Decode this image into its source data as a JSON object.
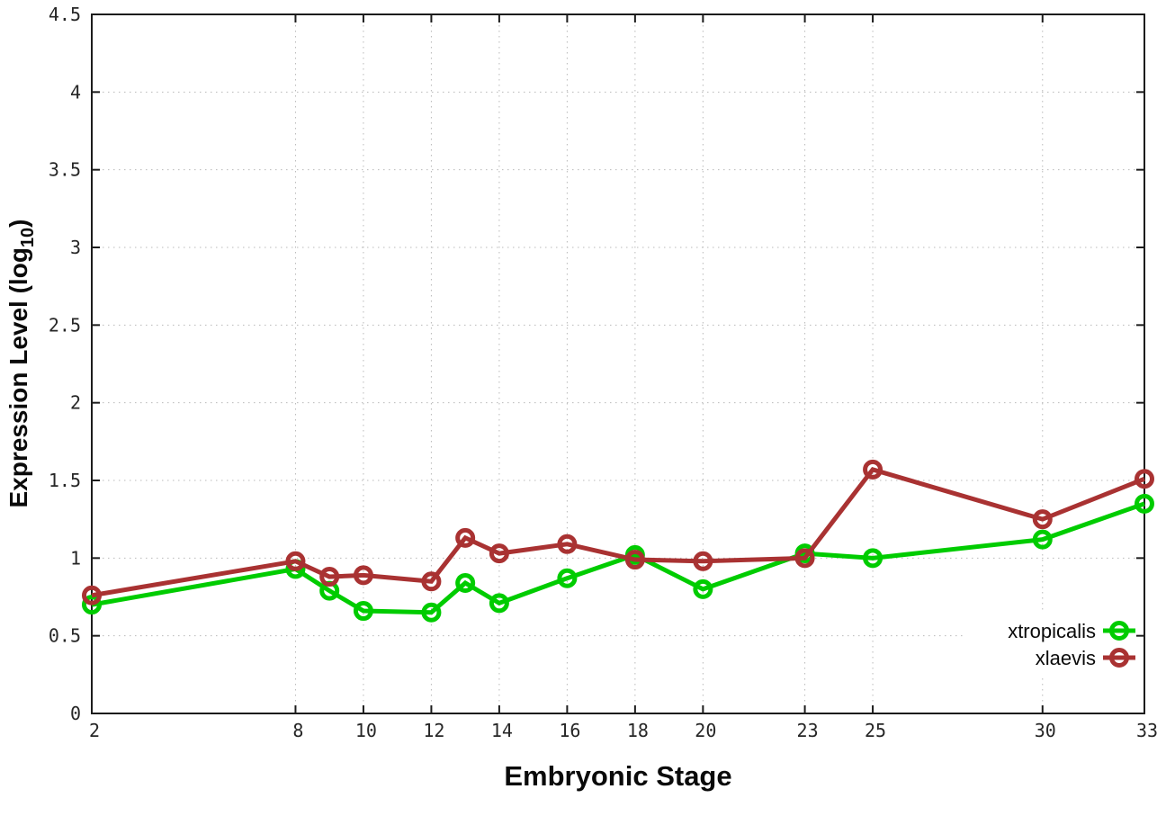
{
  "figure": {
    "background": "#ffffff",
    "border_color": "#1c1c1c",
    "grid_color": "#b9b9b9",
    "tick_label_color": "#262626"
  },
  "chart_data": {
    "type": "line",
    "title": "",
    "xlabel": "Embryonic Stage",
    "ylabel": "Expression Level (log10)",
    "ylabel_parts": {
      "main": "Expression Level (log",
      "sub": "10",
      "close": ")"
    },
    "x": [
      2,
      8,
      9,
      10,
      12,
      13,
      14,
      16,
      18,
      20,
      23,
      25,
      30,
      33
    ],
    "series": [
      {
        "name": "xtropicalis",
        "color": "#00cc00",
        "values": [
          0.7,
          0.93,
          0.79,
          0.66,
          0.65,
          0.84,
          0.71,
          0.87,
          1.02,
          0.8,
          1.03,
          1.0,
          1.12,
          1.35
        ]
      },
      {
        "name": "xlaevis",
        "color": "#a93232",
        "values": [
          0.76,
          0.98,
          0.88,
          0.89,
          0.85,
          1.13,
          1.03,
          1.09,
          0.99,
          0.98,
          1.0,
          1.57,
          1.25,
          1.51
        ]
      }
    ],
    "xlim": [
      2,
      33
    ],
    "ylim": [
      0,
      4.5
    ],
    "x_ticks": [
      2,
      8,
      10,
      12,
      14,
      16,
      18,
      20,
      23,
      25,
      30,
      33
    ],
    "x_tick_labels": [
      "2",
      "8",
      "10",
      "12",
      "14",
      "16",
      "18",
      "20",
      "23",
      "25",
      "30",
      "33"
    ],
    "y_ticks": [
      0,
      0.5,
      1,
      1.5,
      2,
      2.5,
      3,
      3.5,
      4,
      4.5
    ],
    "y_tick_labels": [
      "0",
      "0.5",
      "1",
      "1.5",
      "2",
      "2.5",
      "3",
      "3.5",
      "4",
      "4.5"
    ],
    "grid": true,
    "marker": "open-circle",
    "legend_position": "bottom-right"
  }
}
